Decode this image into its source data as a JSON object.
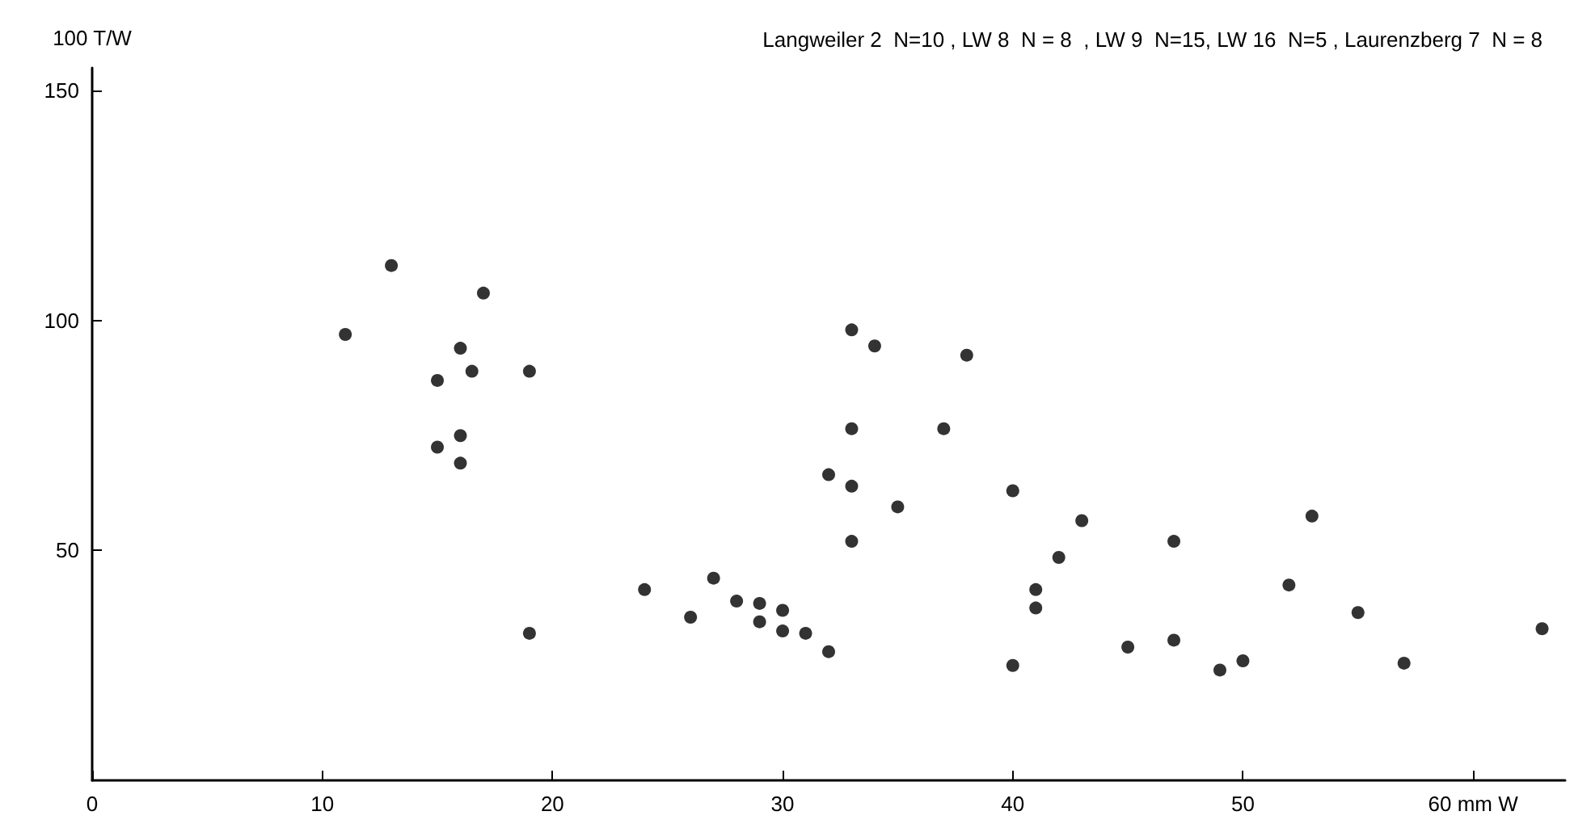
{
  "chart_data": {
    "type": "scatter",
    "ylabel": "100 T/W",
    "xlabel": null,
    "annotations": [
      "Langweiler 2  N=10 , LW 8  N = 8  , LW 9  N=15, LW 16  N=5 , Laurenzberg 7  N = 8"
    ],
    "x": [
      11,
      13,
      17,
      15,
      16,
      16.5,
      19,
      16,
      15,
      16,
      19,
      33,
      34,
      38,
      33,
      37,
      32,
      33,
      40,
      35,
      33,
      24,
      27,
      26,
      28,
      29,
      30,
      29,
      30,
      31,
      32,
      40,
      43,
      42,
      41,
      41,
      47,
      45,
      47,
      49,
      50,
      53,
      52,
      55,
      57,
      63
    ],
    "values": [
      97,
      112,
      106,
      87,
      94,
      89,
      89,
      75,
      72.5,
      69,
      32,
      98,
      94.5,
      92.5,
      76.5,
      76.5,
      66.5,
      64,
      63,
      59.5,
      52,
      41.5,
      44,
      35.5,
      39,
      38.5,
      37,
      34.5,
      32.5,
      32,
      28,
      25,
      56.5,
      48.5,
      41.5,
      37.5,
      52,
      29,
      30.5,
      24,
      26,
      57.5,
      42.5,
      36.5,
      25.5,
      33
    ],
    "color": "#000000",
    "marker": "circle",
    "grid": false,
    "xlim": [
      0,
      64
    ],
    "ylim": [
      0,
      155
    ],
    "xticks": [
      0,
      10,
      20,
      30,
      40,
      50,
      {
        "value": 60,
        "label": "60 mm W"
      }
    ],
    "yticks": [
      50,
      100,
      150
    ]
  }
}
